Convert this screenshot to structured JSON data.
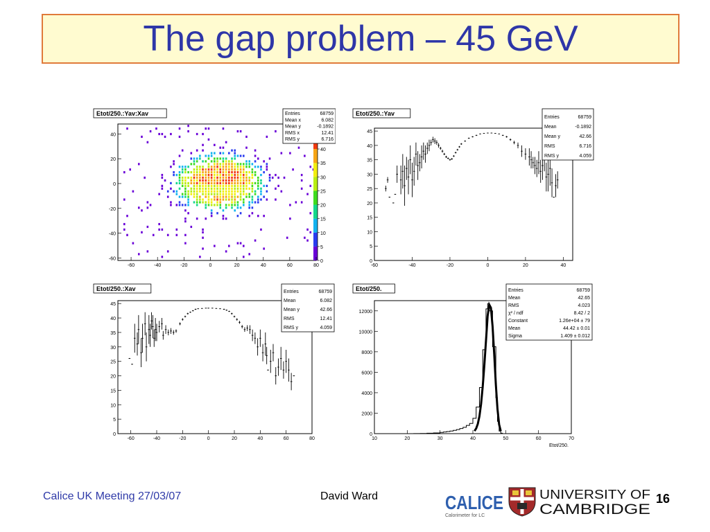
{
  "slide": {
    "title": "The gap problem – 45 GeV",
    "footer_left": "Calice UK Meeting 27/03/07",
    "footer_center": "David Ward",
    "page_number": "16"
  },
  "logos": {
    "calice_text": "CALICE",
    "calice_sub": "Calorimeter for LC",
    "cambridge_line1": "UNIVERSITY OF",
    "cambridge_line2": "CAMBRIDGE"
  },
  "colors": {
    "title_text": "#2e36a8",
    "title_bg": "#fffbd0",
    "title_border": "#e07a3a",
    "footer_text": "#2f3aa8"
  },
  "chart_data": [
    {
      "id": "yav-xav",
      "type": "heatmap",
      "title": "Etot/250.:Yav:Xav",
      "xlim": [
        -70,
        80
      ],
      "ylim": [
        -62,
        48
      ],
      "xticks": [
        -60,
        -40,
        -20,
        0,
        20,
        40,
        60,
        80
      ],
      "yticks": [
        -60,
        -40,
        -20,
        0,
        20,
        40
      ],
      "zlim": [
        0,
        42
      ],
      "zticks": [
        0,
        5,
        10,
        15,
        20,
        25,
        30,
        35,
        40
      ],
      "stats": [
        {
          "label": "Entries",
          "value": "68759"
        },
        {
          "label": "Mean x",
          "value": "6.082"
        },
        {
          "label": "Mean y",
          "value": "-0.1892"
        },
        {
          "label": "RMS x",
          "value": "12.41"
        },
        {
          "label": "RMS y",
          "value": "6.716"
        }
      ]
    },
    {
      "id": "yav",
      "type": "scatter",
      "title": "Etot/250.:Yav",
      "xlim": [
        -60,
        45
      ],
      "ylim": [
        0,
        46
      ],
      "xticks": [
        -60,
        -40,
        -20,
        0,
        20,
        40
      ],
      "yticks": [
        0,
        5,
        10,
        15,
        20,
        25,
        30,
        35,
        40,
        45
      ],
      "stats": [
        {
          "label": "Entries",
          "value": "68759"
        },
        {
          "label": "Mean",
          "value": "-0.1892"
        },
        {
          "label": "Mean y",
          "value": "42.66"
        },
        {
          "label": "RMS",
          "value": "6.716"
        },
        {
          "label": "RMS y",
          "value": "4.059"
        }
      ],
      "points": [
        [
          -54,
          25,
          1
        ],
        [
          -53,
          28,
          1
        ],
        [
          -52,
          22,
          0
        ],
        [
          -50,
          20,
          0
        ],
        [
          -49,
          23,
          0
        ],
        [
          -48,
          30,
          3
        ],
        [
          -46,
          28,
          5
        ],
        [
          -45,
          31,
          6
        ],
        [
          -44,
          26,
          7
        ],
        [
          -43,
          32,
          4
        ],
        [
          -42,
          29,
          6
        ],
        [
          -41,
          35,
          5
        ],
        [
          -40,
          28,
          6
        ],
        [
          -39,
          31,
          5
        ],
        [
          -38,
          37,
          4
        ],
        [
          -37,
          33,
          5
        ],
        [
          -36,
          34,
          3
        ],
        [
          -35,
          36,
          4
        ],
        [
          -34,
          38,
          3
        ],
        [
          -33,
          37,
          3
        ],
        [
          -32,
          39,
          2
        ],
        [
          -31,
          40,
          2
        ],
        [
          -30,
          41,
          1
        ],
        [
          -29,
          42,
          1
        ],
        [
          -28,
          41.5,
          1
        ],
        [
          -27,
          41,
          0.8
        ],
        [
          -26,
          40,
          0.8
        ],
        [
          -25,
          39,
          0.5
        ],
        [
          -24,
          38,
          0.5
        ],
        [
          -23,
          37,
          0.4
        ],
        [
          -22,
          36,
          0.4
        ],
        [
          -21,
          35.5,
          0.3
        ],
        [
          -20,
          35,
          0.3
        ],
        [
          -19,
          35.3,
          0.3
        ],
        [
          -18,
          36.3,
          0.3
        ],
        [
          -17,
          37.5,
          0.3
        ],
        [
          -16,
          38.5,
          0.3
        ],
        [
          -15,
          39.5,
          0.3
        ],
        [
          -14,
          40.5,
          0.3
        ],
        [
          -12,
          41.5,
          0.2
        ],
        [
          -10,
          42.5,
          0.2
        ],
        [
          -8,
          43,
          0.2
        ],
        [
          -6,
          43.5,
          0.2
        ],
        [
          -4,
          44,
          0.1
        ],
        [
          -2,
          44.2,
          0.1
        ],
        [
          0,
          44.3,
          0.1
        ],
        [
          2,
          44.3,
          0.1
        ],
        [
          4,
          44.2,
          0.1
        ],
        [
          6,
          44,
          0.1
        ],
        [
          8,
          43.5,
          0.2
        ],
        [
          10,
          43,
          0.3
        ],
        [
          12,
          42,
          0.4
        ],
        [
          14,
          41,
          0.6
        ],
        [
          16,
          40,
          1
        ],
        [
          18,
          38,
          2
        ],
        [
          20,
          37,
          2
        ],
        [
          22,
          36,
          3
        ],
        [
          23,
          35,
          3
        ],
        [
          24,
          34,
          2
        ],
        [
          25,
          33,
          3
        ],
        [
          26,
          32,
          3
        ],
        [
          27,
          34,
          4
        ],
        [
          28,
          31,
          4
        ],
        [
          29,
          33,
          5
        ],
        [
          30,
          35,
          4
        ],
        [
          31,
          29,
          5
        ],
        [
          32,
          30,
          6
        ],
        [
          33,
          32,
          6
        ],
        [
          34,
          27,
          5
        ],
        [
          35,
          22,
          0
        ],
        [
          36,
          26,
          4
        ],
        [
          37,
          28,
          3
        ]
      ]
    },
    {
      "id": "xav",
      "type": "scatter",
      "title": "Etot/250.:Xav",
      "xlim": [
        -70,
        80
      ],
      "ylim": [
        0,
        46
      ],
      "xticks": [
        -60,
        -40,
        -20,
        0,
        20,
        40,
        60,
        80
      ],
      "yticks": [
        0,
        5,
        10,
        15,
        20,
        25,
        30,
        35,
        40,
        45
      ],
      "stats": [
        {
          "label": "Entries",
          "value": "68759"
        },
        {
          "label": "Mean",
          "value": "6.082"
        },
        {
          "label": "Mean y",
          "value": "42.66"
        },
        {
          "label": "RMS",
          "value": "12.41"
        },
        {
          "label": "RMS y",
          "value": "4.059"
        }
      ],
      "points": [
        [
          -61,
          26,
          0
        ],
        [
          -59,
          24,
          0
        ],
        [
          -57,
          33,
          5
        ],
        [
          -55,
          31,
          4
        ],
        [
          -54,
          36,
          5
        ],
        [
          -52,
          28,
          5
        ],
        [
          -51,
          33,
          5
        ],
        [
          -49,
          38,
          4
        ],
        [
          -48,
          30,
          5
        ],
        [
          -46,
          36,
          5
        ],
        [
          -45,
          34,
          4
        ],
        [
          -44,
          39,
          3
        ],
        [
          -43,
          37,
          4
        ],
        [
          -42,
          33,
          3
        ],
        [
          -41,
          36,
          4
        ],
        [
          -40,
          35,
          3
        ],
        [
          -38,
          37,
          2
        ],
        [
          -36,
          38,
          2
        ],
        [
          -35,
          34,
          1.5
        ],
        [
          -33,
          36,
          1.5
        ],
        [
          -31,
          35,
          1
        ],
        [
          -29,
          35.5,
          1
        ],
        [
          -27,
          35,
          0.8
        ],
        [
          -25,
          35.5,
          0.6
        ],
        [
          -22,
          38,
          0.5
        ],
        [
          -20,
          39.5,
          0.4
        ],
        [
          -18,
          40.5,
          0.3
        ],
        [
          -16,
          41.5,
          0.3
        ],
        [
          -14,
          42,
          0.2
        ],
        [
          -12,
          42.5,
          0.2
        ],
        [
          -10,
          43,
          0.2
        ],
        [
          -8,
          43.2,
          0.1
        ],
        [
          -5,
          43.3,
          0.1
        ],
        [
          -2,
          43.4,
          0.1
        ],
        [
          0,
          43.4,
          0.1
        ],
        [
          3,
          43.4,
          0.1
        ],
        [
          6,
          43.3,
          0.1
        ],
        [
          9,
          43.2,
          0.1
        ],
        [
          12,
          43,
          0.2
        ],
        [
          14,
          42.7,
          0.2
        ],
        [
          16,
          42.3,
          0.2
        ],
        [
          18,
          41.5,
          0.3
        ],
        [
          20,
          40.5,
          0.3
        ],
        [
          22,
          39.5,
          0.4
        ],
        [
          24,
          38.5,
          0.5
        ],
        [
          26,
          37,
          0.6
        ],
        [
          28,
          36,
          0.8
        ],
        [
          30,
          36.5,
          1
        ],
        [
          32,
          36,
          1.5
        ],
        [
          34,
          34,
          2
        ],
        [
          36,
          33,
          2
        ],
        [
          38,
          30,
          3
        ],
        [
          40,
          33,
          3
        ],
        [
          42,
          28,
          3
        ],
        [
          44,
          31,
          4
        ],
        [
          45,
          27,
          3
        ],
        [
          46,
          22,
          0
        ],
        [
          48,
          25,
          4
        ],
        [
          50,
          28,
          3
        ],
        [
          52,
          20,
          3
        ],
        [
          54,
          23,
          3
        ],
        [
          56,
          26,
          4
        ],
        [
          58,
          22,
          3
        ],
        [
          60,
          25,
          4
        ],
        [
          62,
          22,
          4
        ],
        [
          64,
          18,
          3
        ],
        [
          66,
          20,
          0
        ]
      ]
    },
    {
      "id": "etot",
      "type": "line",
      "title": "Etot/250.",
      "xlabel": "Etot/250.",
      "xlim": [
        10,
        70
      ],
      "ylim": [
        0,
        13000
      ],
      "xticks": [
        10,
        20,
        30,
        40,
        50,
        60,
        70
      ],
      "yticks": [
        0,
        2000,
        4000,
        6000,
        8000,
        10000,
        12000
      ],
      "stats": [
        {
          "label": "Entries",
          "value": "68759"
        },
        {
          "label": "Mean",
          "value": "42.65"
        },
        {
          "label": "RMS",
          "value": "4.023"
        },
        {
          "label": "χ² / ndf",
          "value": "8.42 / 2"
        },
        {
          "label": "Constant",
          "value": "1.26e+04 ± 79"
        },
        {
          "label": "Mean",
          "value": "44.42 ± 0.01"
        },
        {
          "label": "Sigma",
          "value": "1.409 ± 0.012"
        }
      ],
      "histogram": [
        [
          20,
          0
        ],
        [
          22,
          10
        ],
        [
          24,
          20
        ],
        [
          26,
          40
        ],
        [
          28,
          70
        ],
        [
          30,
          120
        ],
        [
          31,
          160
        ],
        [
          32,
          200
        ],
        [
          33,
          250
        ],
        [
          34,
          320
        ],
        [
          35,
          400
        ],
        [
          36,
          500
        ],
        [
          37,
          620
        ],
        [
          38,
          800
        ],
        [
          39,
          1000
        ],
        [
          40,
          1500
        ],
        [
          41,
          2600
        ],
        [
          42,
          4500
        ],
        [
          43,
          8200
        ],
        [
          44,
          12200
        ],
        [
          44.5,
          12700
        ],
        [
          45,
          12000
        ],
        [
          46,
          8500
        ],
        [
          47,
          3500
        ],
        [
          47.5,
          1200
        ],
        [
          48,
          250
        ],
        [
          48.5,
          40
        ],
        [
          49,
          0
        ],
        [
          50,
          0
        ]
      ],
      "fit": [
        [
          40.5,
          260
        ],
        [
          41,
          500
        ],
        [
          41.5,
          950
        ],
        [
          42,
          1700
        ],
        [
          42.5,
          2900
        ],
        [
          43,
          4600
        ],
        [
          43.5,
          6700
        ],
        [
          44,
          9100
        ],
        [
          44.5,
          11500
        ],
        [
          45,
          12600
        ],
        [
          45.5,
          12300
        ],
        [
          46,
          10500
        ],
        [
          46.5,
          7800
        ],
        [
          47,
          4800
        ],
        [
          47.5,
          2400
        ],
        [
          48,
          900
        ],
        [
          48.5,
          250
        ]
      ]
    }
  ]
}
